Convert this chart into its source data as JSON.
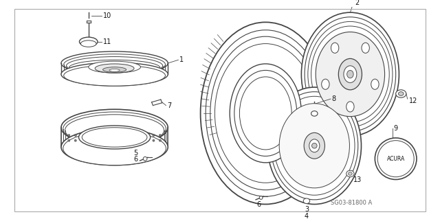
{
  "background_color": "#ffffff",
  "watermark": "SG03-81800 A",
  "line_color": "#444444",
  "text_color": "#111111",
  "font_size": 7.0,
  "fig_width": 6.4,
  "fig_height": 3.19,
  "dpi": 100
}
